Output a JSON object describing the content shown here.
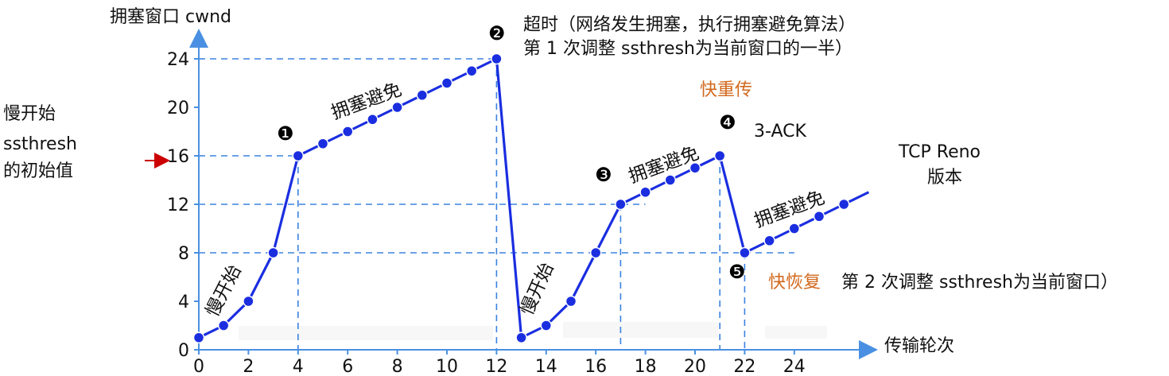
{
  "chart_data": {
    "type": "line",
    "ylabel": "拥塞窗口 cwnd",
    "xlabel": "传输轮次",
    "series_label": "TCP Reno 版本",
    "x_ticks": [
      "0",
      "2",
      "4",
      "6",
      "8",
      "10",
      "12",
      "14",
      "16",
      "18",
      "20",
      "22",
      "24"
    ],
    "y_ticks": [
      "0",
      "4",
      "8",
      "12",
      "16",
      "20",
      "24"
    ],
    "xlim": [
      0,
      27.5
    ],
    "ylim": [
      0,
      26
    ],
    "points": [
      [
        0,
        1
      ],
      [
        1,
        2
      ],
      [
        2,
        4
      ],
      [
        3,
        8
      ],
      [
        4,
        16
      ],
      [
        5,
        17
      ],
      [
        6,
        18
      ],
      [
        7,
        19
      ],
      [
        8,
        20
      ],
      [
        9,
        21
      ],
      [
        10,
        22
      ],
      [
        11,
        23
      ],
      [
        12,
        24
      ],
      [
        13,
        1
      ],
      [
        14,
        2
      ],
      [
        15,
        4
      ],
      [
        16,
        8
      ],
      [
        17,
        12
      ],
      [
        18,
        13
      ],
      [
        19,
        14
      ],
      [
        20,
        15
      ],
      [
        21,
        16
      ],
      [
        22,
        8
      ],
      [
        23,
        9
      ],
      [
        24,
        10
      ],
      [
        25,
        11
      ],
      [
        26,
        12
      ]
    ],
    "line_end": [
      27,
      13
    ],
    "colors": {
      "line": "#1a2ee0",
      "grid": "#3b82e0",
      "axis": "#4a90e2",
      "accent": "#d2691e",
      "arrow": "#cc0000"
    }
  },
  "annotations": {
    "slow_start_left": [
      "慢开始",
      "ssthresh",
      "的初始值"
    ],
    "timeout_line1": "超时（网络发生拥塞，执行拥塞避免算法）",
    "timeout_line2": "第 1 次调整 ssthresh为当前窗口的一半）",
    "fast_retransmit": "快重传",
    "three_ack": "3-ACK",
    "tcp_reno": [
      "TCP Reno",
      "版本"
    ],
    "fast_recovery": "快恢复",
    "second_adjust": "第 2 次调整 ssthresh为当前窗口）",
    "phase_slow_start": "慢开始",
    "phase_avoid": "拥塞避免",
    "markers": [
      "❶",
      "❷",
      "❸",
      "❹",
      "❺"
    ]
  }
}
